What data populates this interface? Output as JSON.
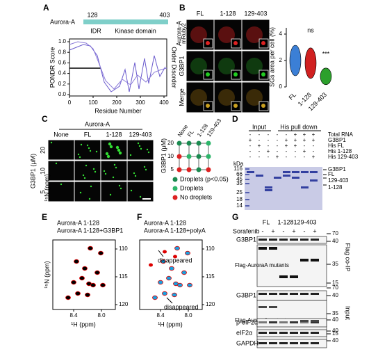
{
  "panel_a": {
    "label": "A",
    "protein": "Aurora-A",
    "pos_start": "128",
    "pos_end": "403",
    "domain_idr": "IDR",
    "domain_kinase": "Kinase domain",
    "y_label": "PONDR Score",
    "x_label": "Residue Number",
    "right_label": "Order Disorder",
    "yticks": [
      "0.0",
      "0.2",
      "0.4",
      "0.6",
      "0.8",
      "1.0"
    ],
    "xticks": [
      "0",
      "100",
      "200",
      "300",
      "400"
    ]
  },
  "panel_b": {
    "label": "B",
    "columns": [
      "FL",
      "1-128",
      "129-403"
    ],
    "rows": [
      [
        "Aurora-A",
        "mRuby2"
      ],
      [
        "G3BP1"
      ],
      [
        "Merge"
      ]
    ],
    "y_label": "SGs area per cell (%)",
    "yticks": [
      "0",
      "2",
      "4"
    ],
    "x_labels": [
      "FL",
      "1-128",
      "129-403"
    ],
    "annotations": [
      "ns",
      "***"
    ]
  },
  "panel_c": {
    "label": "C",
    "header": "Aurora-A",
    "columns": [
      "None",
      "FL",
      "1-128",
      "129-403"
    ],
    "rows": [
      "20",
      "10",
      "5"
    ],
    "y_label": "G3BP1 (μM)",
    "diagram_columns": [
      "None",
      "FL",
      "1-128",
      "129-403"
    ],
    "diagram_rows": [
      "20",
      "10",
      "5"
    ],
    "diagram_y_label": "G3BP1 (μM)",
    "legend": [
      "Droplets (p<0.05)",
      "Droplets",
      "No droplets"
    ]
  },
  "panel_d": {
    "label": "D",
    "group_input": "Input",
    "group_pulldown": "His pull down",
    "conditions": [
      {
        "name": "Total RNA",
        "marks": [
          "-",
          "-",
          "-",
          "-",
          "-",
          "+",
          "+",
          "+"
        ]
      },
      {
        "name": "G3BP1",
        "marks": [
          "+",
          "-",
          "-",
          "-",
          "+",
          "+",
          "+",
          "+"
        ]
      },
      {
        "name": "His FL",
        "marks": [
          "-",
          "+",
          "-",
          "-",
          "+",
          "+",
          "-",
          "-"
        ]
      },
      {
        "name": "His 1-128",
        "marks": [
          "-",
          "-",
          "+",
          "-",
          "-",
          "-",
          "+",
          "-"
        ]
      },
      {
        "name": "His 129-403",
        "marks": [
          "-",
          "-",
          "-",
          "+",
          "-",
          "-",
          "-",
          "+"
        ]
      }
    ],
    "unit": "kDa",
    "markers": [
      "116",
      "66",
      "45",
      "35",
      "25",
      "18",
      "14"
    ],
    "bands": [
      "G3BP1",
      "FL",
      "129-403",
      "1-128"
    ]
  },
  "panel_e": {
    "label": "E",
    "legend": [
      "Aurora-A 1-128",
      "Aurora-A 1-128+G3BP1"
    ],
    "yticks": [
      "110",
      "115",
      "120"
    ],
    "xticks": [
      "8.4",
      "8.0"
    ],
    "y_label": "¹⁵N (ppm)",
    "x_label": "¹H (ppm)"
  },
  "panel_f": {
    "label": "F",
    "legend": [
      "Aurora-A 1-128",
      "Aurora-A 1-128+polyA"
    ],
    "annotations": [
      "disappeared",
      "disappeared"
    ],
    "yticks": [
      "110",
      "115",
      "120"
    ],
    "xticks": [
      "8.4",
      "8.0"
    ],
    "y_label": "¹⁵N (ppm)",
    "x_label": "¹H (ppm)"
  },
  "panel_g": {
    "label": "G",
    "constructs": [
      "FL",
      "1-128",
      "129-403"
    ],
    "treatment": "Sorafenib",
    "signs": [
      "-",
      "+",
      "-",
      "+",
      "-",
      "+"
    ],
    "blots": [
      "G3BP1",
      "Flag-AuroraA mutants",
      "G3BP1",
      "Flag-AuroraA mutants",
      "p-eIF2α",
      "eIF2α",
      "GAPDH"
    ],
    "markers_coip": [
      "70",
      "40",
      "35",
      "15"
    ],
    "markers_input": [
      "70",
      "40",
      "35",
      "15",
      "40",
      "40",
      "40"
    ],
    "side_labels": [
      "Flag co-IP",
      "Input"
    ]
  }
}
